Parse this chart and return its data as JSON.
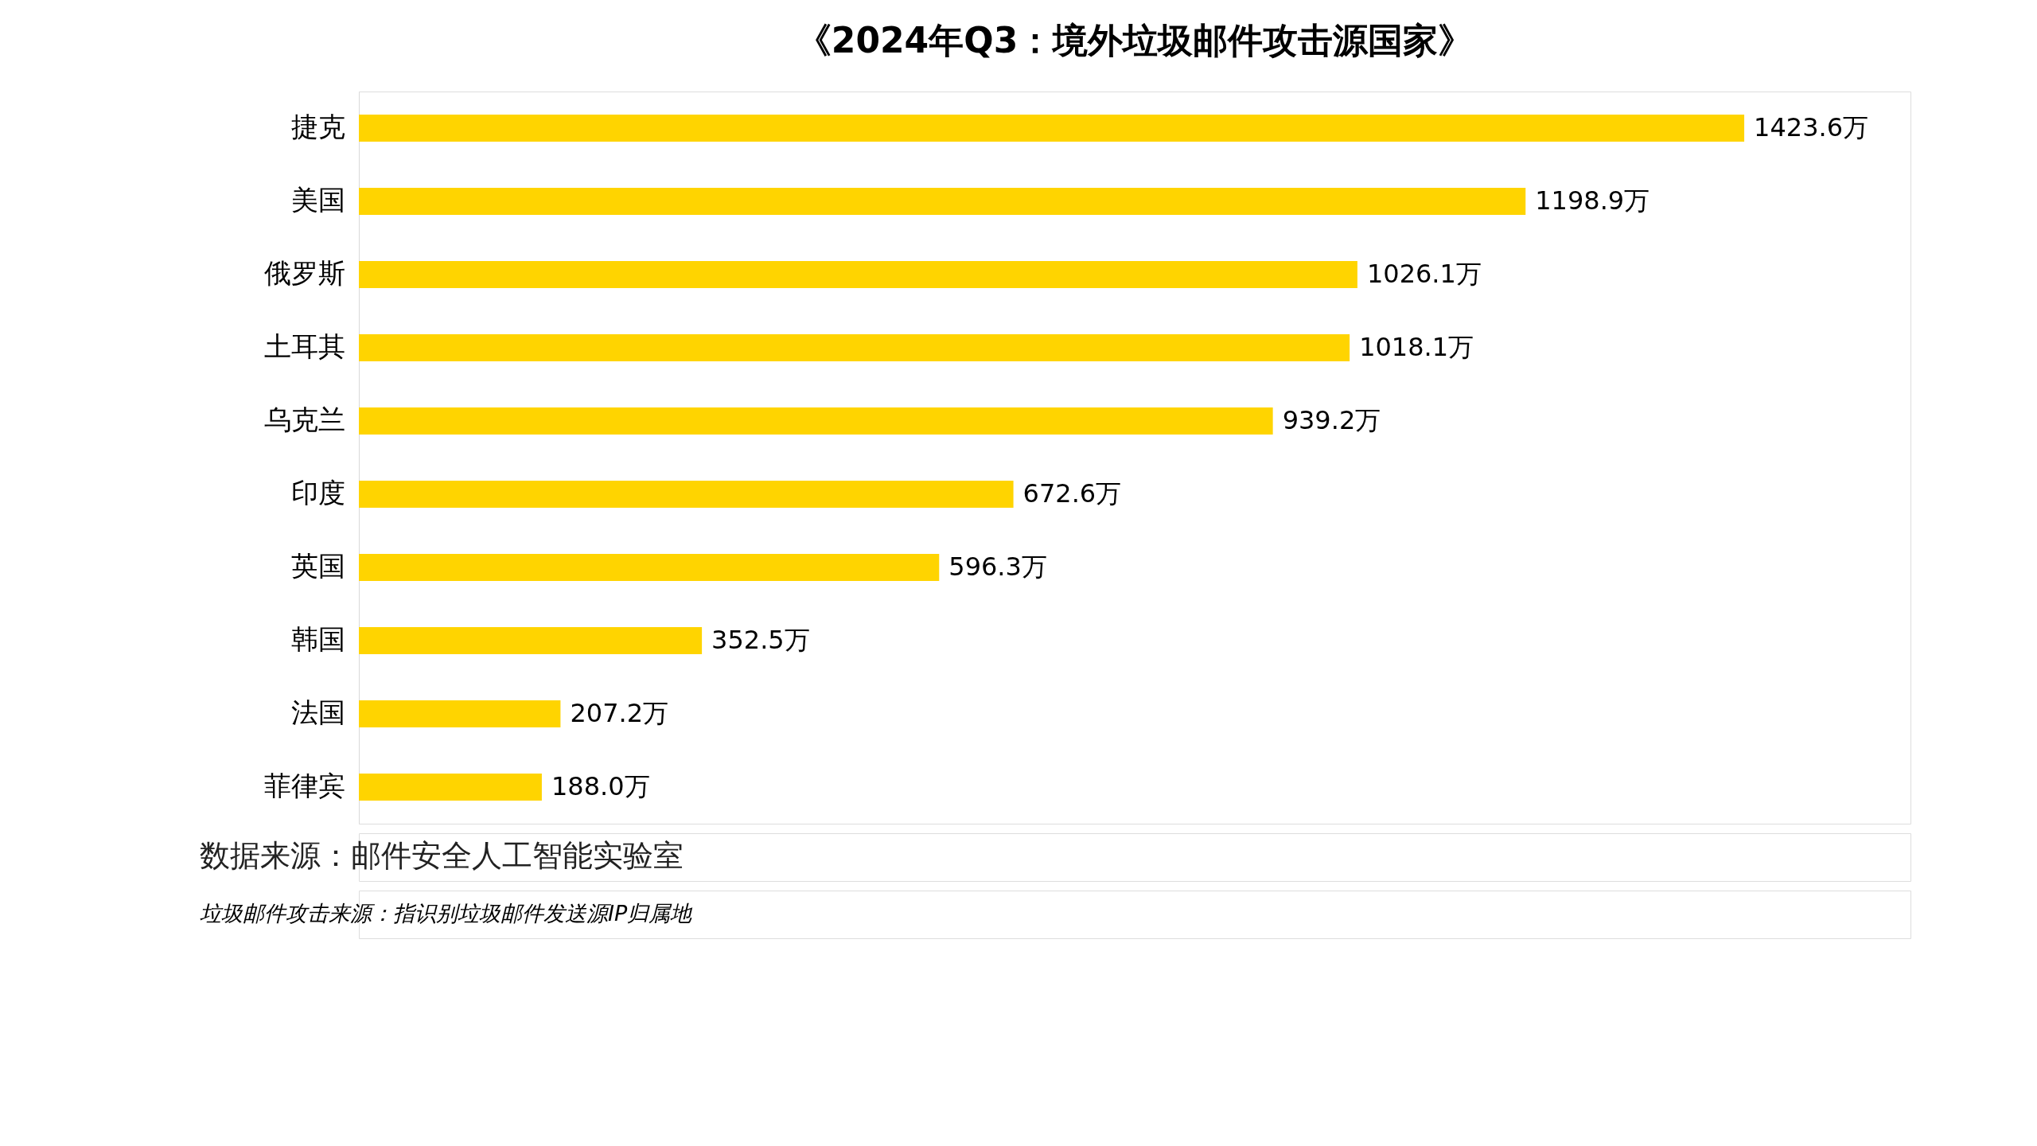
{
  "chart_data": {
    "type": "bar",
    "orientation": "horizontal",
    "title": "《2024年Q3：境外垃圾邮件攻击源国家》",
    "categories": [
      "捷克",
      "美国",
      "俄罗斯",
      "土耳其",
      "乌克兰",
      "印度",
      "英国",
      "韩国",
      "法国",
      "菲律宾"
    ],
    "values": [
      1423.6,
      1198.9,
      1026.1,
      1018.1,
      939.2,
      672.6,
      596.3,
      352.5,
      207.2,
      188.0
    ],
    "value_labels": [
      "1423.6万",
      "1198.9万",
      "1026.1万",
      "1018.1万",
      "939.2万",
      "672.6万",
      "596.3万",
      "352.5万",
      "207.2万",
      "188.0万"
    ],
    "color": "#ffd400",
    "grid": false,
    "annotations": [
      "数据来源：邮件安全人工智能实验室",
      "垃圾邮件攻击来源：指识别垃圾邮件发送源IP归属地"
    ]
  }
}
